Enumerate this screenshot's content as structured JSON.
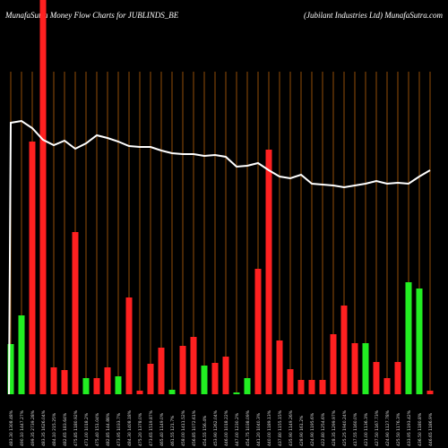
{
  "chart_data": {
    "type": "bar",
    "title": "MunafaSutra  Money Flow  Charts for JUBLINDS_BE",
    "subtitle": "(Jubilant Industries Ltd) MunafaSutra.com",
    "categories": [
      "483.30 1308.48%",
      "490.10 1447.27%",
      "499.35 2739.28%",
      "483.35 1626.04%",
      "484.10 215.25%",
      "482.65 183.64%",
      "475.85 1180.92%",
      "471.00 1018.2%",
      "475.40 151.04%",
      "482.85 144.88%",
      "473.95 1033.7%",
      "484.30 1408.18%",
      "475.20 1378.0%",
      "473.65 1519.87%",
      "465.40 1149.0%",
      "461.55 121.7%",
      "458.00 1411.52%",
      "456.85 1072.61%",
      "454.55 156.4%",
      "453.90 1262.04%",
      "446.00 1018.22%",
      "447.00 1230.2%",
      "454.75 1038.09%",
      "441.20 1040.3%",
      "440.00 1189.13%",
      "437.80 1155.15%",
      "435.90 1149.26%",
      "428.90 161.2%",
      "424.90 1195.6%",
      "422.80 1254.6%",
      "428.35 1299.97%",
      "425.25 1940.24%",
      "417.55 1160.0%",
      "421.00 1136.3%",
      "427.50 1167.73%",
      "424.90 1127.78%",
      "425.50 1176.3%",
      "433.95 1193.42%",
      "436.50 1180.8%",
      "446.65 1186.9%"
    ],
    "series": [
      {
        "name": "money-flow",
        "values": [
          56,
          88,
          282,
          460,
          30,
          27,
          181,
          18,
          18,
          30,
          20,
          108,
          4,
          34,
          52,
          5,
          54,
          64,
          32,
          35,
          42,
          2,
          18,
          140,
          273,
          60,
          28,
          16,
          16,
          16,
          67,
          99,
          57,
          57,
          36,
          18,
          36,
          125,
          118,
          4
        ],
        "colors": [
          "#22ee22",
          "#22ee22",
          "#ff2020",
          "#ff2020",
          "#ff2020",
          "#ff2020",
          "#ff2020",
          "#22ee22",
          "#ff2020",
          "#ff2020",
          "#22ee22",
          "#ff2020",
          "#ff2020",
          "#ff2020",
          "#ff2020",
          "#22ee22",
          "#ff2020",
          "#ff2020",
          "#22ee22",
          "#ff2020",
          "#ff2020",
          "#22ee22",
          "#22ee22",
          "#ff2020",
          "#ff2020",
          "#ff2020",
          "#ff2020",
          "#ff2020",
          "#ff2020",
          "#ff2020",
          "#ff2020",
          "#ff2020",
          "#ff2020",
          "#22ee22",
          "#ff2020",
          "#ff2020",
          "#ff2020",
          "#22ee22",
          "#22ee22",
          "#ff2020"
        ]
      },
      {
        "name": "price",
        "color": "#ffffff",
        "values": [
          303,
          305,
          297,
          284,
          278,
          283,
          274,
          280,
          289,
          286,
          282,
          277,
          276,
          276,
          272,
          269,
          268,
          268,
          266,
          267,
          265,
          254,
          255,
          258,
          250,
          243,
          241,
          245,
          235,
          234,
          233,
          231,
          233,
          235,
          238,
          235,
          236,
          235,
          243,
          250
        ]
      }
    ],
    "ylim": [
      0,
      440
    ]
  }
}
